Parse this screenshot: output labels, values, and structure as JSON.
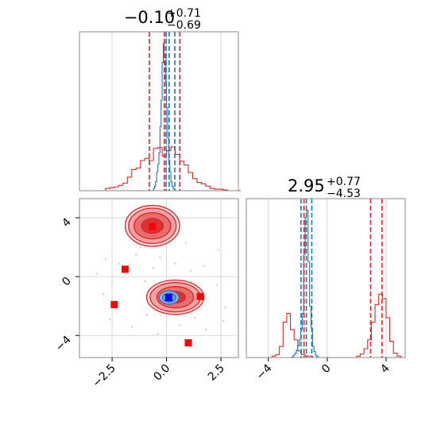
{
  "chart_data": {
    "type": "corner",
    "colors": {
      "posterior": "#d62728",
      "reference": "#1f77b4",
      "marker_blue": "#0000ff",
      "marker_red": "#ff0000"
    },
    "params": [
      {
        "title_main": "−0.10",
        "title_upper": "+0.71",
        "title_lower": "−0.69",
        "range": [
          -4.0,
          3.3
        ]
      },
      {
        "title_main": "2.95",
        "title_upper": "+0.77",
        "title_lower": "−4.53",
        "range": [
          -5.5,
          5.3
        ]
      }
    ],
    "x_ticks_p0": {
      "values": [
        -2.5,
        0.0,
        2.5
      ],
      "labels": [
        "−2.5",
        "0.0",
        "2.5"
      ]
    },
    "x_ticks_p1": {
      "values": [
        -4,
        0,
        4
      ],
      "labels": [
        "−4",
        "0",
        "4"
      ]
    },
    "y_ticks_p1": {
      "values": [
        4,
        0,
        -4
      ],
      "labels": [
        "4",
        "0",
        "−4"
      ]
    },
    "hist_p0_red": {
      "edges_start": -4.0,
      "bin_width": 0.2,
      "counts": [
        0,
        0,
        0,
        0,
        0,
        0,
        0.3,
        0.4,
        0.5,
        0.7,
        1.0,
        1.8,
        2.8,
        3.0,
        4.0,
        4.3,
        4.0,
        5.6,
        5.7,
        4.6,
        5.3,
        5.8,
        4.8,
        3.9,
        3.4,
        2.4,
        1.6,
        1.1,
        0.9,
        0.6,
        0.3,
        0.2,
        0.2,
        0.1,
        0,
        0,
        0
      ]
    },
    "hist_p0_blue": {
      "edges_start": -0.6,
      "bin_width": 0.05,
      "counts": [
        0.3,
        0.6,
        1.2,
        2.5,
        3.5,
        5.0,
        8.5,
        12.0,
        17.0,
        19.5,
        18.0,
        14.5,
        11.0,
        7.0,
        4.0,
        2.5,
        1.2,
        0.6,
        0.3,
        0.2
      ]
    },
    "hist_p1_red": {
      "edges_start": -5.5,
      "bin_width": 0.25,
      "counts": [
        0,
        0,
        0,
        0,
        0,
        0,
        0,
        0.2,
        0.4,
        1.5,
        4.8,
        6.0,
        3.8,
        2.4,
        0.9,
        0.4,
        0.2,
        0.2,
        0,
        0,
        0,
        0,
        0,
        0,
        0,
        0,
        0,
        0,
        0,
        0,
        0.2,
        0.5,
        1.2,
        2.4,
        4.8,
        7.2,
        8.6,
        8.0,
        5.4,
        2.2,
        0.6,
        0.2,
        0
      ]
    },
    "hist_p1_blue": {
      "edges_start": -2.5,
      "bin_width": 0.1,
      "counts": [
        0,
        0.1,
        0.3,
        0.6,
        1.0,
        1.6,
        2.4,
        3.8,
        6.0,
        14.0,
        19.0,
        20.0,
        13.0,
        7.0,
        4.0,
        1.5,
        0.8,
        0.3,
        0.1,
        0
      ]
    },
    "quantiles_p0_red": [
      -0.79,
      -0.1,
      0.61
    ],
    "quantiles_p0_blue": [
      -0.02,
      0.12,
      0.38
    ],
    "quantiles_p1_red": [
      -1.58,
      2.95,
      3.72
    ],
    "quantiles_p1_blue": [
      -1.78,
      -1.42,
      -1.05
    ],
    "contours_red": [
      {
        "cx": -0.65,
        "cy": 3.45,
        "rx": [
          2.0,
          1.75,
          1.35,
          0.8
        ],
        "ry": [
          1.25,
          1.08,
          0.8,
          0.45
        ]
      },
      {
        "cx": 0.4,
        "cy": -1.4,
        "rx": [
          2.1,
          1.85,
          1.35,
          0.75
        ],
        "ry": [
          1.05,
          0.9,
          0.65,
          0.35
        ]
      }
    ],
    "contours_blue": [
      {
        "cx": 0.12,
        "cy": -1.42,
        "rx": [
          0.45,
          0.3
        ],
        "ry": [
          0.45,
          0.3
        ]
      }
    ],
    "markers_red": [
      {
        "x": -0.65,
        "y": 3.4
      },
      {
        "x": -1.9,
        "y": 0.5
      },
      {
        "x": -2.4,
        "y": -1.9
      },
      {
        "x": 1.55,
        "y": -1.35
      },
      {
        "x": 1.0,
        "y": -4.5
      }
    ],
    "markers_blue": [
      {
        "x": 0.1,
        "y": -1.42
      }
    ],
    "scatter_points": [
      {
        "x": -2.8,
        "y": 1.2
      },
      {
        "x": -2.5,
        "y": -0.4
      },
      {
        "x": -2.2,
        "y": 0.9
      },
      {
        "x": -1.4,
        "y": 1.5
      },
      {
        "x": -1.0,
        "y": -0.3
      },
      {
        "x": -0.6,
        "y": 0.6
      },
      {
        "x": -0.3,
        "y": 1.3
      },
      {
        "x": 0.4,
        "y": 0.9
      },
      {
        "x": 1.1,
        "y": 0.4
      },
      {
        "x": 1.7,
        "y": 0.7
      },
      {
        "x": 2.3,
        "y": -0.6
      },
      {
        "x": 2.7,
        "y": -2.1
      },
      {
        "x": -2.6,
        "y": -2.9
      },
      {
        "x": -1.6,
        "y": -3.4
      },
      {
        "x": -0.4,
        "y": -3.9
      },
      {
        "x": 0.6,
        "y": -3.3
      },
      {
        "x": 1.8,
        "y": -3.6
      },
      {
        "x": 2.6,
        "y": -3.0
      },
      {
        "x": -3.2,
        "y": 0.2
      },
      {
        "x": -1.2,
        "y": 2.0
      },
      {
        "x": 0.9,
        "y": 2.3
      },
      {
        "x": 2.4,
        "y": 1.8
      },
      {
        "x": -2.9,
        "y": -1.2
      },
      {
        "x": 1.3,
        "y": -2.8
      },
      {
        "x": -0.9,
        "y": -2.6
      }
    ]
  }
}
